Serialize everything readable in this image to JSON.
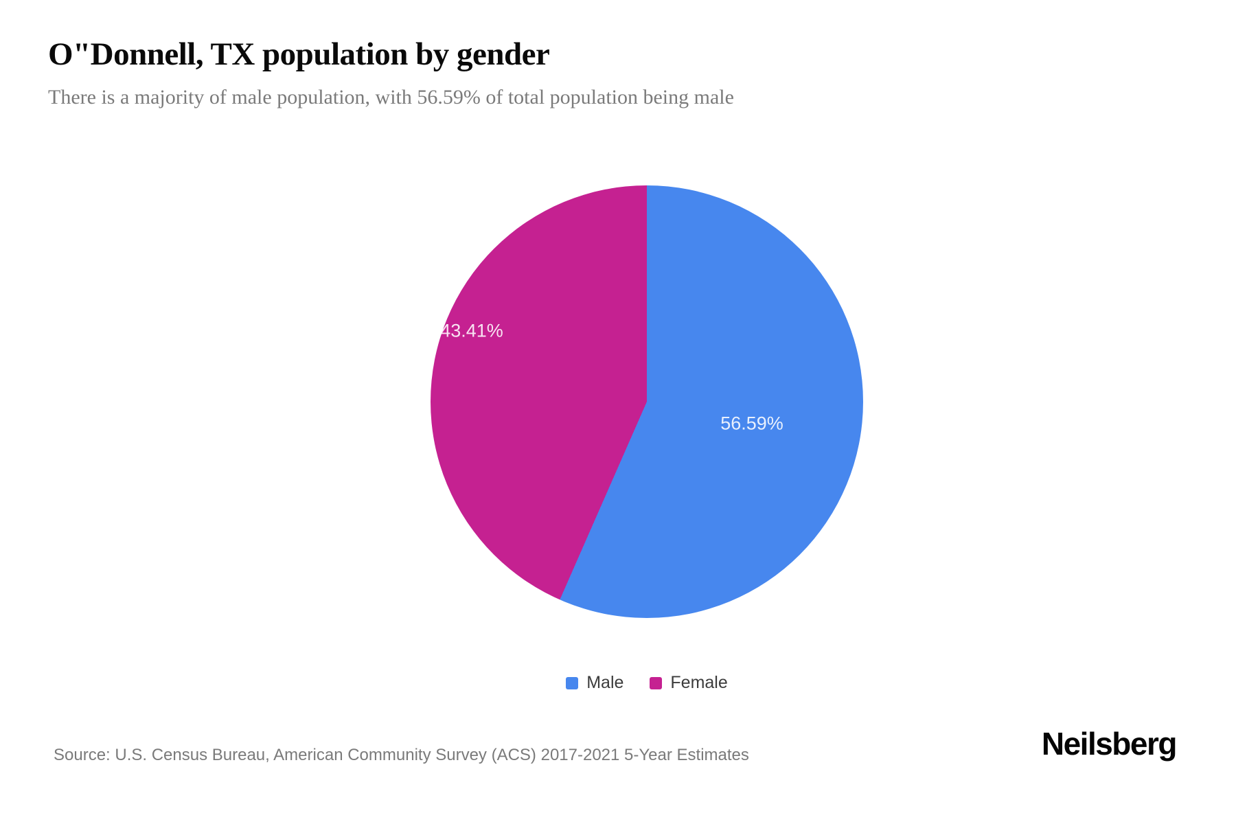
{
  "header": {
    "title": "O\"Donnell, TX population by gender",
    "subtitle": "There is a majority of male population, with 56.59% of total population being male"
  },
  "chart_data": {
    "type": "pie",
    "title": "O\"Donnell, TX population by gender",
    "subtitle": "There is a majority of male population, with 56.59% of total population being male",
    "start_angle_deg": 0,
    "direction": "clockwise",
    "legend_position": "bottom",
    "series": [
      {
        "name": "Male",
        "value": 56.59,
        "label": "56.59%",
        "color": "#4787EE"
      },
      {
        "name": "Female",
        "value": 43.41,
        "label": "43.41%",
        "color": "#C52191"
      }
    ]
  },
  "footer": {
    "source": "Source: U.S. Census Bureau, American Community Survey (ACS) 2017-2021 5-Year Estimates",
    "brand": "Neilsberg"
  }
}
